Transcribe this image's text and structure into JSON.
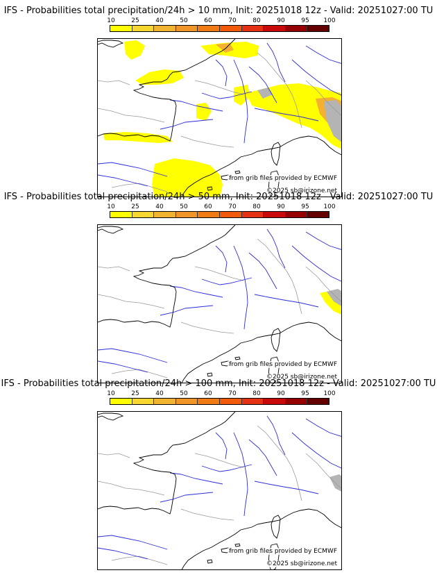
{
  "colorbar": {
    "ticks": [
      "10",
      "25",
      "40",
      "50",
      "60",
      "70",
      "80",
      "90",
      "95",
      "100"
    ],
    "colors": [
      "#ffff00",
      "#f8d830",
      "#f0b430",
      "#f09628",
      "#f07a14",
      "#f05a0a",
      "#e63214",
      "#c80a0a",
      "#960000",
      "#640000"
    ]
  },
  "map_style": {
    "river_color": "#2b2bd8",
    "border_color": "#999999",
    "coast_color": "#000000",
    "yellow": "#ffff00",
    "light_yellow": "#ffee55",
    "orange": "#f4b030",
    "gray_shade": "#b4b4b4"
  },
  "panels": [
    {
      "title": "IFS - Probabilities total precipitation/24h > 10 mm, Init: 20251018 12z - Valid: 20251027:00 TU",
      "credit": "from grib files provided by ECMWF",
      "copyright": "©2025 sb@irizone.net"
    },
    {
      "title": "IFS - Probabilities total precipitation/24h > 50 mm, Init: 20251018 12z - Valid: 20251027:00 TU",
      "credit": "from grib files provided by ECMWF",
      "copyright": "©2025 sb@irizone.net"
    },
    {
      "title": "IFS - Probabilities total precipitation/24h > 100 mm, Init: 20251018 12z - Valid: 20251027:00 TU",
      "credit": "from grib files provided by ECMWF",
      "copyright": "©2025 sb@irizone.net"
    }
  ]
}
